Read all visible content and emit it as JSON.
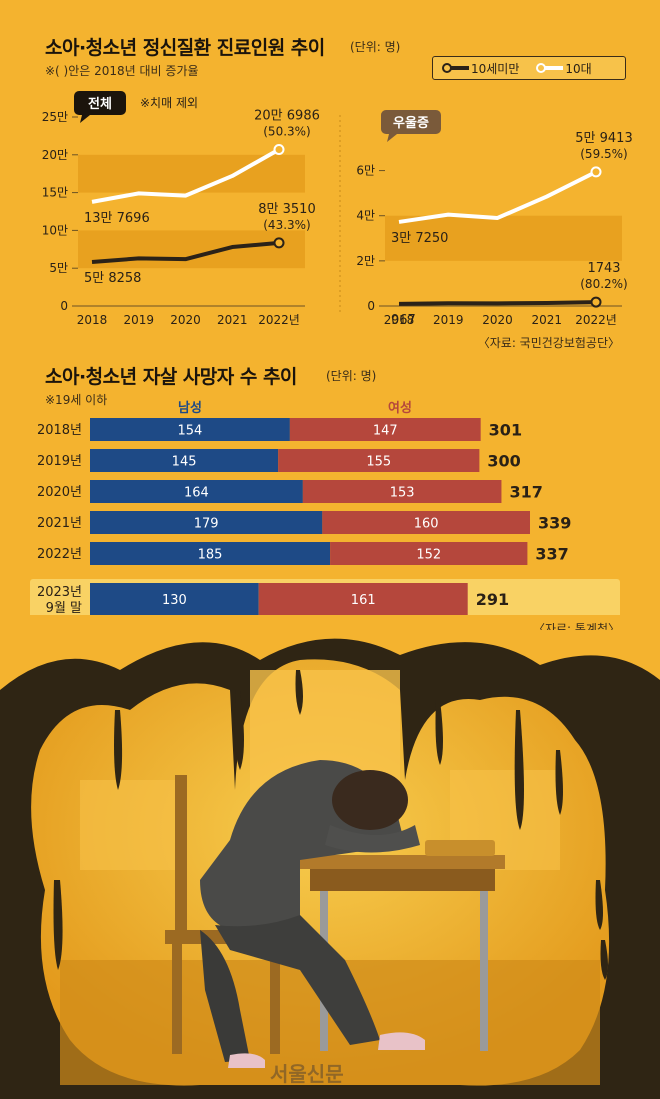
{
  "header1": {
    "title": "소아·청소년 정신질환 진료인원 추이",
    "unit": "(단위: 명)",
    "note": "※( )안은 2018년 대비 증가율",
    "legend": [
      {
        "label": "10세미만",
        "color": "#2b2218"
      },
      {
        "label": "10대",
        "color": "#ffffff"
      }
    ]
  },
  "header2": {
    "title": "소아·청소년 자살 사망자 수 추이",
    "unit": "(단위: 명)",
    "note": "※19세 이하",
    "source": "〈자료: 통계청〉"
  },
  "source1": "〈자료: 국민건강보험공단〉",
  "watermark": "서울신문",
  "colors": {
    "background": "#f4b32f",
    "band": "#e8a11f",
    "male": "#1e4a86",
    "female": "#b5473c",
    "teen_line": "#ffffff",
    "child_line": "#2b2218"
  },
  "chart_data": [
    {
      "type": "line",
      "tag": "전체",
      "tag_note": "※치매 제외",
      "x": [
        "2018",
        "2019",
        "2020",
        "2021",
        "2022년"
      ],
      "ylim": [
        0,
        250000
      ],
      "yticks": [
        "0",
        "5만",
        "10만",
        "15만",
        "20만",
        "25만"
      ],
      "series": [
        {
          "name": "10대",
          "values": [
            137696,
            149000,
            146000,
            172000,
            206986
          ]
        },
        {
          "name": "10세미만",
          "values": [
            58258,
            63000,
            62000,
            78000,
            83510
          ]
        }
      ],
      "labels": {
        "teen_start": "13만 7696",
        "teen_end": "20만 6986",
        "teen_end_pct": "(50.3%)",
        "child_start": "5만 8258",
        "child_end": "8만 3510",
        "child_end_pct": "(43.3%)"
      }
    },
    {
      "type": "line",
      "tag": "우울증",
      "x": [
        "2018",
        "2019",
        "2020",
        "2021",
        "2022년"
      ],
      "ylim": [
        0,
        70000
      ],
      "yticks": [
        "0",
        "2만",
        "4만",
        "6만"
      ],
      "series": [
        {
          "name": "10대",
          "values": [
            37250,
            40500,
            39000,
            48500,
            59413
          ]
        },
        {
          "name": "10세미만",
          "values": [
            967,
            1200,
            1150,
            1350,
            1743
          ]
        }
      ],
      "labels": {
        "teen_start": "3만 7250",
        "teen_end": "5만 9413",
        "teen_end_pct": "(59.5%)",
        "child_start": "967",
        "child_end": "1743",
        "child_end_pct": "(80.2%)"
      }
    },
    {
      "type": "bar",
      "stacked": true,
      "orientation": "horizontal",
      "series_labels": [
        "남성",
        "여성"
      ],
      "categories": [
        "2018년",
        "2019년",
        "2020년",
        "2021년",
        "2022년",
        "2023년 9월 말"
      ],
      "series": [
        {
          "name": "남성",
          "values": [
            154,
            145,
            164,
            179,
            185,
            130
          ]
        },
        {
          "name": "여성",
          "values": [
            147,
            155,
            153,
            160,
            152,
            161
          ]
        }
      ],
      "totals": [
        301,
        300,
        317,
        339,
        337,
        291
      ]
    }
  ]
}
